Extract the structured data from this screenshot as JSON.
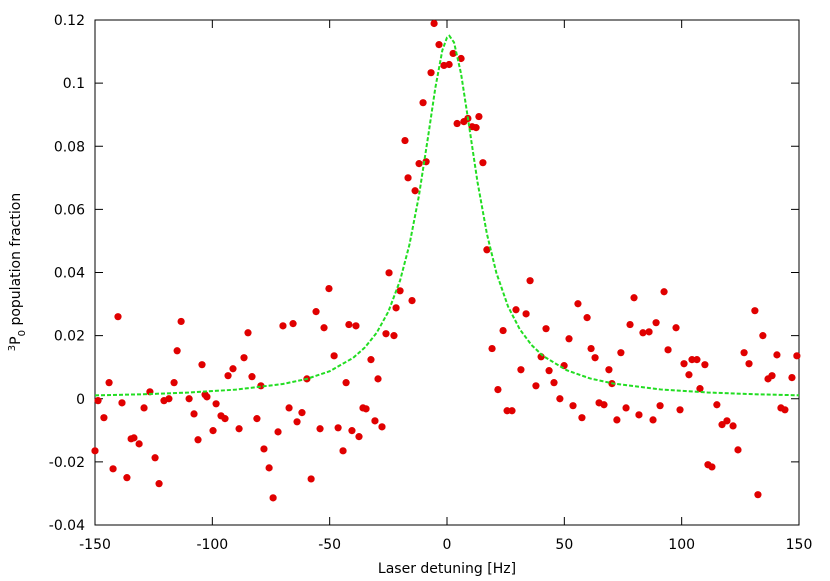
{
  "chart_data": {
    "type": "scatter",
    "xlabel": "Laser detuning [Hz]",
    "ylabel": {
      "sup": "3",
      "main": "P",
      "sub": "0",
      "rest": " population fraction"
    },
    "xlim": [
      -150,
      150
    ],
    "xticks": [
      -150,
      -100,
      -50,
      0,
      50,
      100,
      150
    ],
    "ylim": [
      -0.04,
      0.12
    ],
    "yticks": [
      -0.04,
      -0.02,
      0,
      0.02,
      0.04,
      0.06,
      0.08,
      0.1,
      0.12
    ],
    "grid": false,
    "series": [
      {
        "type": "scatter",
        "color": "#e00000",
        "x": [
          -150.0,
          -148.7,
          -146.2,
          -144.0,
          -142.3,
          -140.2,
          -138.5,
          -136.4,
          -134.6,
          -133.4,
          -131.2,
          -129.1,
          -126.6,
          -124.4,
          -122.7,
          -120.6,
          -118.5,
          -116.3,
          -115.0,
          -113.3,
          -109.9,
          -107.8,
          -106.1,
          -104.4,
          -103.1,
          -102.3,
          -99.7,
          -98.4,
          -96.3,
          -94.6,
          -93.3,
          -91.2,
          -88.6,
          -86.5,
          -84.8,
          -83.1,
          -81.0,
          -79.3,
          -78.0,
          -75.8,
          -74.1,
          -72.0,
          -69.9,
          -67.3,
          -65.6,
          -63.9,
          -61.8,
          -59.7,
          -57.9,
          -55.8,
          -54.1,
          -52.4,
          -50.3,
          -48.1,
          -46.4,
          -44.3,
          -43.0,
          -41.8,
          -40.5,
          -38.8,
          -37.5,
          -35.8,
          -34.5,
          -32.4,
          -30.7,
          -29.4,
          -27.7,
          -26.0,
          -24.7,
          -22.6,
          -21.7,
          -20.0,
          -17.9,
          -16.6,
          -14.9,
          -13.6,
          -11.9,
          -10.2,
          -8.9,
          -6.8,
          -5.5,
          -3.4,
          -1.3,
          0.9,
          2.6,
          4.3,
          6.0,
          7.2,
          8.9,
          10.7,
          12.4,
          13.6,
          15.3,
          17.0,
          19.2,
          21.7,
          23.9,
          25.6,
          27.7,
          29.4,
          31.5,
          33.7,
          35.4,
          37.9,
          40.1,
          42.2,
          43.5,
          45.6,
          48.1,
          49.9,
          52.0,
          53.7,
          55.8,
          57.5,
          59.7,
          61.4,
          63.1,
          64.8,
          66.9,
          69.0,
          70.3,
          72.4,
          74.1,
          76.3,
          78.0,
          79.7,
          81.8,
          83.5,
          86.1,
          87.8,
          89.1,
          90.8,
          92.5,
          94.2,
          97.6,
          99.3,
          101.0,
          103.1,
          104.4,
          106.5,
          107.8,
          109.9,
          111.2,
          112.9,
          115.0,
          117.2,
          119.3,
          121.9,
          124.0,
          126.6,
          128.7,
          131.2,
          132.5,
          134.6,
          136.8,
          138.5,
          140.6,
          142.3,
          144.0,
          147.0,
          149.1
        ],
        "values": [
          -0.0165,
          -0.0006,
          -0.006,
          0.0051,
          -0.0222,
          0.026,
          -0.0013,
          -0.025,
          -0.0127,
          -0.0124,
          -0.0143,
          -0.0029,
          0.0022,
          -0.0187,
          -0.0269,
          -0.0006,
          0,
          0.0051,
          0.0152,
          0.0245,
          0,
          -0.0048,
          -0.013,
          0.0108,
          0.0013,
          0.0006,
          -0.0101,
          -0.0016,
          -0.0054,
          -0.0063,
          0.0073,
          0.0095,
          -0.0095,
          0.013,
          0.0209,
          0.007,
          -0.0063,
          0.0041,
          -0.0159,
          -0.0219,
          -0.0314,
          -0.0105,
          0.0231,
          -0.0029,
          0.0238,
          -0.0073,
          -0.0044,
          0.0063,
          -0.0254,
          0.0276,
          -0.0095,
          0.0225,
          0.0349,
          0.0136,
          -0.0092,
          -0.0165,
          0.0051,
          0.0235,
          -0.0101,
          0.0231,
          -0.012,
          -0.0029,
          -0.0032,
          0.0124,
          -0.007,
          0.0063,
          -0.0089,
          0.0206,
          0.0399,
          0.02,
          0.0288,
          0.0342,
          0.0818,
          0.07,
          0.0311,
          0.0659,
          0.0745,
          0.0938,
          0.0751,
          0.1033,
          0.1189,
          0.1122,
          0.1056,
          0.1059,
          0.1094,
          0.0872,
          0.1078,
          0.0878,
          0.0888,
          0.0862,
          0.0859,
          0.0894,
          0.0748,
          0.0472,
          0.0159,
          0.0029,
          0.0216,
          -0.0038,
          -0.0038,
          0.0282,
          0.0092,
          0.0269,
          0.0374,
          0.0041,
          0.0133,
          0.0222,
          0.0089,
          0.0051,
          0,
          0.0105,
          0.019,
          -0.0022,
          0.0301,
          -0.006,
          0.0257,
          0.0159,
          0.013,
          -0.0013,
          -0.0019,
          0.0092,
          0.0048,
          -0.0067,
          0.0146,
          -0.0029,
          0.0235,
          0.032,
          -0.0051,
          0.0209,
          0.0212,
          -0.0067,
          0.0241,
          -0.0022,
          0.0339,
          0.0155,
          0.0225,
          -0.0035,
          0.0111,
          0.0076,
          0.0124,
          0.0124,
          0.0032,
          0.0108,
          -0.0209,
          -0.0216,
          -0.0019,
          -0.0082,
          -0.007,
          -0.0086,
          -0.0162,
          0.0146,
          0.0111,
          0.0279,
          -0.0304,
          0.02,
          0.0063,
          0.0073,
          0.0139,
          -0.0029,
          -0.0035,
          0.0067,
          0.0136
        ]
      },
      {
        "type": "line",
        "color": "#22dd22",
        "dashed": true,
        "x": [
          -150,
          -130,
          -110,
          -90,
          -70,
          -60,
          -50,
          -40,
          -35,
          -30,
          -25,
          -20,
          -16,
          -12,
          -8,
          -5,
          -2,
          0,
          1,
          3,
          6,
          9,
          13,
          17,
          21,
          26,
          31,
          36,
          41,
          51,
          61,
          71,
          91,
          111,
          131,
          150
        ],
        "values": [
          0.00107,
          0.00141,
          0.00196,
          0.00289,
          0.00467,
          0.00623,
          0.00871,
          0.01295,
          0.01624,
          0.02087,
          0.02758,
          0.03746,
          0.04881,
          0.06414,
          0.08333,
          0.09838,
          0.11036,
          0.11446,
          0.115,
          0.11288,
          0.10295,
          0.08846,
          0.06866,
          0.05227,
          0.03999,
          0.02926,
          0.02203,
          0.01704,
          0.01353,
          0.00903,
          0.00643,
          0.0048,
          0.00295,
          0.00199,
          0.00143,
          0.00109
        ]
      }
    ]
  }
}
